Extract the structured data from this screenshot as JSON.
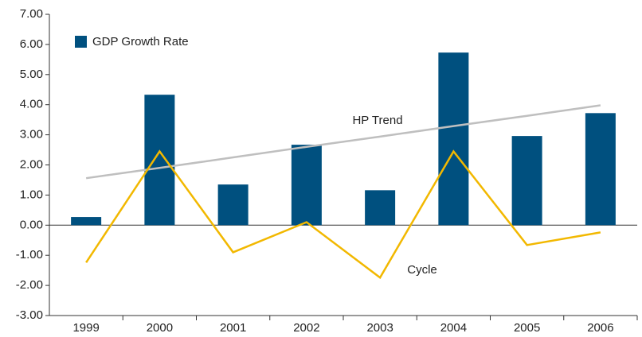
{
  "chart_data": {
    "type": "bar",
    "categories": [
      "1999",
      "2000",
      "2001",
      "2002",
      "2003",
      "2004",
      "2005",
      "2006"
    ],
    "series": [
      {
        "name": "GDP Growth Rate",
        "type": "bar",
        "color": "#00507f",
        "values": [
          0.27,
          4.33,
          1.35,
          2.67,
          1.16,
          5.73,
          2.96,
          3.72
        ]
      },
      {
        "name": "HP Trend",
        "type": "line",
        "color": "#bfbfbf",
        "values": [
          1.56,
          1.9,
          2.25,
          2.6,
          2.94,
          3.29,
          3.63,
          3.98
        ]
      },
      {
        "name": "Cycle",
        "type": "line",
        "color": "#f2b800",
        "values": [
          -1.24,
          2.45,
          -0.9,
          0.1,
          -1.74,
          2.45,
          -0.66,
          -0.24
        ]
      }
    ],
    "ylim": [
      -3,
      7
    ],
    "yticks": [
      {
        "value": -3,
        "label": "-3.00"
      },
      {
        "value": -2,
        "label": "-2.00"
      },
      {
        "value": -1,
        "label": "-1.00"
      },
      {
        "value": 0,
        "label": "0.00"
      },
      {
        "value": 1,
        "label": "1.00"
      },
      {
        "value": 2,
        "label": "2.00"
      },
      {
        "value": 3,
        "label": "3.00"
      },
      {
        "value": 4,
        "label": "4.00"
      },
      {
        "value": 5,
        "label": "5.00"
      },
      {
        "value": 6,
        "label": "6.00"
      },
      {
        "value": 7,
        "label": "7.00"
      }
    ],
    "legend": "top-left"
  }
}
